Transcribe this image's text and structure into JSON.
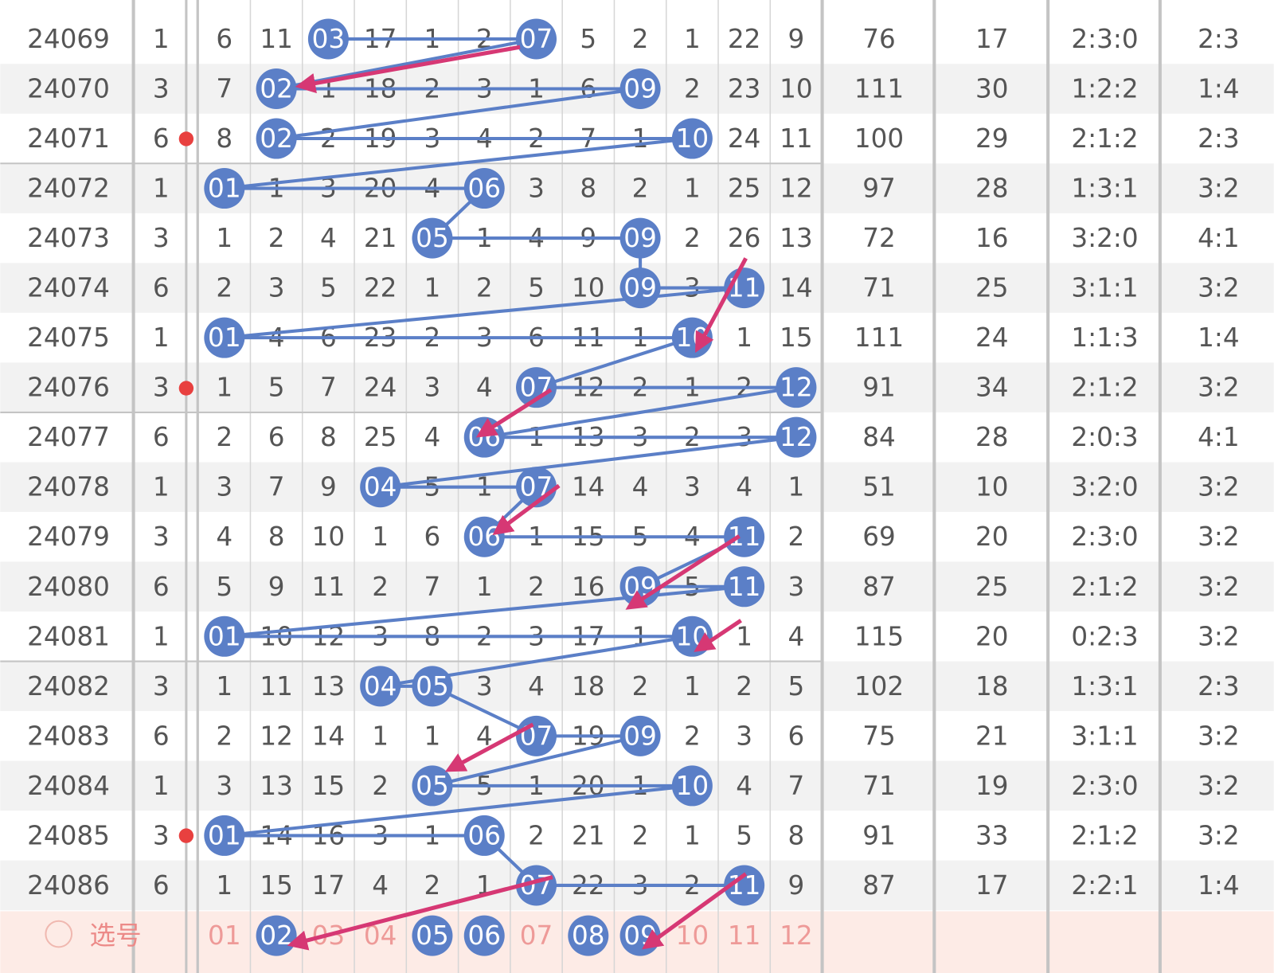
{
  "rows": [
    {
      "period": "24069",
      "group": 1,
      "cells": [
        6,
        11,
        "03",
        17,
        1,
        2,
        "07",
        5,
        2,
        1,
        22,
        9
      ],
      "stats": [
        76,
        17,
        "2:3:0",
        "2:3"
      ]
    },
    {
      "period": "24070",
      "group": 3,
      "cells": [
        7,
        "02",
        1,
        18,
        2,
        3,
        1,
        6,
        "09",
        2,
        23,
        10
      ],
      "stats": [
        111,
        30,
        "1:2:2",
        "1:4"
      ]
    },
    {
      "period": "24071",
      "group": 6,
      "cells": [
        8,
        "02",
        2,
        19,
        3,
        4,
        2,
        7,
        1,
        "10",
        24,
        11
      ],
      "stats": [
        100,
        29,
        "2:1:2",
        "2:3"
      ]
    },
    {
      "period": "24072",
      "group": 1,
      "cells": [
        "01",
        1,
        3,
        20,
        4,
        "06",
        3,
        8,
        2,
        1,
        25,
        12
      ],
      "stats": [
        97,
        28,
        "1:3:1",
        "3:2"
      ]
    },
    {
      "period": "24073",
      "group": 3,
      "cells": [
        1,
        2,
        4,
        21,
        "05",
        1,
        4,
        9,
        "09",
        2,
        26,
        13
      ],
      "stats": [
        72,
        16,
        "3:2:0",
        "4:1"
      ]
    },
    {
      "period": "24074",
      "group": 6,
      "cells": [
        2,
        3,
        5,
        22,
        1,
        2,
        5,
        10,
        "09",
        3,
        "11",
        14
      ],
      "stats": [
        71,
        25,
        "3:1:1",
        "3:2"
      ]
    },
    {
      "period": "24075",
      "group": 1,
      "cells": [
        "01",
        4,
        6,
        23,
        2,
        3,
        6,
        11,
        1,
        "10",
        1,
        15
      ],
      "stats": [
        111,
        24,
        "1:1:3",
        "1:4"
      ]
    },
    {
      "period": "24076",
      "group": 3,
      "cells": [
        1,
        5,
        7,
        24,
        3,
        4,
        "07",
        12,
        2,
        1,
        2,
        "12"
      ],
      "stats": [
        91,
        34,
        "2:1:2",
        "3:2"
      ]
    },
    {
      "period": "24077",
      "group": 6,
      "cells": [
        2,
        6,
        8,
        25,
        4,
        "06",
        1,
        13,
        3,
        2,
        3,
        "12"
      ],
      "stats": [
        84,
        28,
        "2:0:3",
        "4:1"
      ]
    },
    {
      "period": "24078",
      "group": 1,
      "cells": [
        3,
        7,
        9,
        "04",
        5,
        1,
        "07",
        14,
        4,
        3,
        4,
        1
      ],
      "stats": [
        51,
        10,
        "3:2:0",
        "3:2"
      ]
    },
    {
      "period": "24079",
      "group": 3,
      "cells": [
        4,
        8,
        10,
        1,
        6,
        "06",
        1,
        15,
        5,
        4,
        "11",
        2
      ],
      "stats": [
        69,
        20,
        "2:3:0",
        "3:2"
      ]
    },
    {
      "period": "24080",
      "group": 6,
      "cells": [
        5,
        9,
        11,
        2,
        7,
        1,
        2,
        16,
        "09",
        5,
        "11",
        3
      ],
      "stats": [
        87,
        25,
        "2:1:2",
        "3:2"
      ]
    },
    {
      "period": "24081",
      "group": 1,
      "cells": [
        "01",
        10,
        12,
        3,
        8,
        2,
        3,
        17,
        1,
        "10",
        1,
        4
      ],
      "stats": [
        115,
        20,
        "0:2:3",
        "3:2"
      ]
    },
    {
      "period": "24082",
      "group": 3,
      "cells": [
        1,
        11,
        13,
        "04",
        "05",
        3,
        4,
        18,
        2,
        1,
        2,
        5
      ],
      "stats": [
        102,
        18,
        "1:3:1",
        "2:3"
      ]
    },
    {
      "period": "24083",
      "group": 6,
      "cells": [
        2,
        12,
        14,
        1,
        1,
        4,
        "07",
        19,
        "09",
        2,
        3,
        6
      ],
      "stats": [
        75,
        21,
        "3:1:1",
        "3:2"
      ]
    },
    {
      "period": "24084",
      "group": 1,
      "cells": [
        3,
        13,
        15,
        2,
        "05",
        5,
        1,
        20,
        1,
        "10",
        4,
        7
      ],
      "stats": [
        71,
        19,
        "2:3:0",
        "3:2"
      ]
    },
    {
      "period": "24085",
      "group": 3,
      "cells": [
        "01",
        14,
        16,
        3,
        1,
        "06",
        2,
        21,
        2,
        1,
        5,
        8
      ],
      "stats": [
        91,
        33,
        "2:1:2",
        "3:2"
      ]
    },
    {
      "period": "24086",
      "group": 6,
      "cells": [
        1,
        15,
        17,
        4,
        2,
        1,
        "07",
        22,
        3,
        2,
        "11",
        9
      ],
      "stats": [
        87,
        17,
        "2:2:1",
        "1:4"
      ]
    }
  ],
  "selector": {
    "label": "选号",
    "numbers": [
      {
        "text": "01",
        "selected": false
      },
      {
        "text": "02",
        "selected": true
      },
      {
        "text": "03",
        "selected": false
      },
      {
        "text": "04",
        "selected": false
      },
      {
        "text": "05",
        "selected": true
      },
      {
        "text": "06",
        "selected": true
      },
      {
        "text": "07",
        "selected": false
      },
      {
        "text": "08",
        "selected": true
      },
      {
        "text": "09",
        "selected": true
      },
      {
        "text": "10",
        "selected": false
      },
      {
        "text": "11",
        "selected": false
      },
      {
        "text": "12",
        "selected": false
      }
    ]
  }
}
